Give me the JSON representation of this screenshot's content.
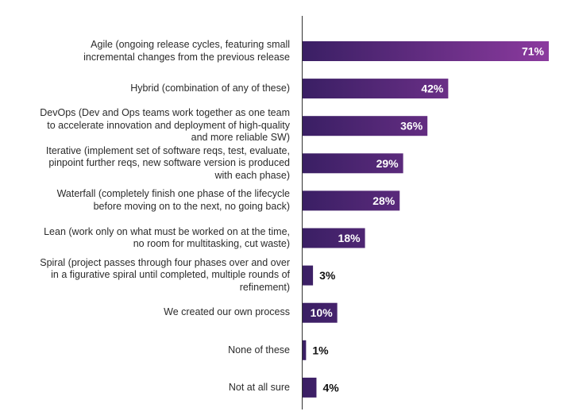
{
  "chart_data": {
    "type": "bar",
    "orientation": "horizontal",
    "value_format": "percent",
    "xlim": [
      0,
      71
    ],
    "colors": {
      "bar_start": "#3a1f64",
      "bar_end": "#8b3a9e",
      "label_inside": "#ffffff",
      "label_outside": "#111111",
      "axis": "#333333"
    },
    "categories": [
      [
        "Agile (ongoing release cycles, featuring small",
        "incremental changes from the previous release"
      ],
      [
        "Hybrid (combination of any of these)"
      ],
      [
        "DevOps (Dev and Ops teams work together as one team",
        "to accelerate innovation and deployment of high-quality",
        "and more reliable SW)"
      ],
      [
        "Iterative (implement set of software reqs, test, evaluate,",
        "pinpoint further reqs, new software version is produced",
        "with each phase)"
      ],
      [
        "Waterfall (completely finish one phase of the lifecycle",
        "before moving on to the next, no going back)"
      ],
      [
        "Lean (work only on what must be worked on at the time,",
        "no room for multitasking, cut waste)"
      ],
      [
        "Spiral (project passes through four phases over and over",
        "in a figurative spiral until completed, multiple rounds of",
        "refinement)"
      ],
      [
        "We created our own process"
      ],
      [
        "None of these"
      ],
      [
        "Not at all sure"
      ]
    ],
    "values": [
      71,
      42,
      36,
      29,
      28,
      18,
      3,
      10,
      1,
      4
    ],
    "value_labels": [
      "71%",
      "42%",
      "36%",
      "29%",
      "28%",
      "18%",
      "3%",
      "10%",
      "1%",
      "4%"
    ]
  }
}
